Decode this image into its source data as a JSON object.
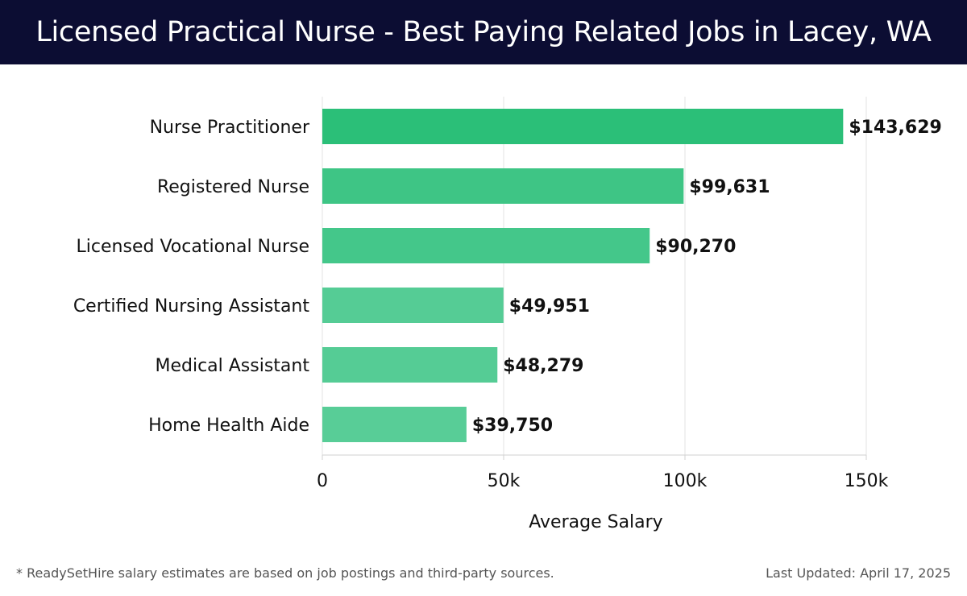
{
  "chart_data": {
    "type": "bar",
    "orientation": "horizontal",
    "title": "Licensed Practical Nurse - Best Paying Related Jobs in Lacey, WA",
    "categories": [
      "Nurse Practitioner",
      "Registered Nurse",
      "Licensed Vocational Nurse",
      "Certified Nursing Assistant",
      "Medical Assistant",
      "Home Health Aide"
    ],
    "values": [
      143629,
      99631,
      90270,
      49951,
      48279,
      39750
    ],
    "value_labels": [
      "$143,629",
      "$99,631",
      "$90,270",
      "$49,951",
      "$48,279",
      "$39,750"
    ],
    "xlabel": "Average Salary",
    "ylabel": "",
    "xlim": [
      0,
      150000
    ],
    "xticks": [
      0,
      50000,
      100000,
      150000
    ],
    "xtick_labels": [
      "0",
      "50k",
      "100k",
      "150k"
    ],
    "grid": true,
    "bar_colors": [
      "#2bbf78",
      "#3ec585",
      "#44c78a",
      "#55cc95",
      "#55cc95",
      "#58cd97"
    ]
  },
  "footnote": "* ReadySetHire salary estimates are based on job postings and third-party sources.",
  "last_updated": "Last Updated: April 17, 2025"
}
